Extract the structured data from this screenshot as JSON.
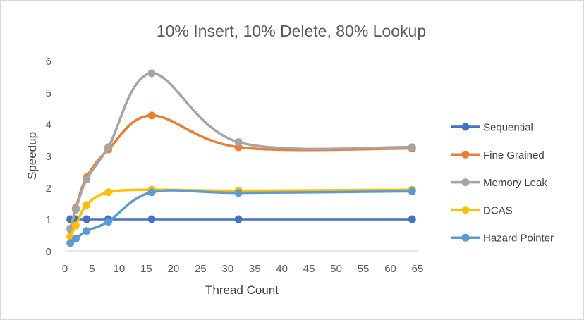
{
  "colors": {
    "axis": "#d9d9d9",
    "sequential": "#4472c4",
    "fine_grained": "#ed7d31",
    "memory_leak": "#a5a5a5",
    "dcas": "#ffc000",
    "hazard_pointer": "#5b9bd5"
  },
  "chart_data": {
    "type": "line",
    "title": "10% Insert, 10% Delete, 80% Lookup",
    "xlabel": "Thread Count",
    "ylabel": "Speedup",
    "xlim": [
      0,
      65
    ],
    "ylim": [
      0,
      6
    ],
    "xticks": [
      0,
      5,
      10,
      15,
      20,
      25,
      30,
      35,
      40,
      45,
      50,
      55,
      60,
      65
    ],
    "yticks": [
      0,
      1,
      2,
      3,
      4,
      5,
      6
    ],
    "grid": false,
    "legend_position": "right",
    "smoothed": true,
    "series": [
      {
        "name": "Sequential",
        "color_key": "sequential",
        "points": [
          [
            1,
            1.0
          ],
          [
            2,
            1.0
          ],
          [
            4,
            1.0
          ],
          [
            8,
            1.0
          ],
          [
            16,
            1.0
          ],
          [
            32,
            1.0
          ],
          [
            64,
            1.0
          ]
        ]
      },
      {
        "name": "Fine Grained",
        "color_key": "fine_grained",
        "points": [
          [
            1,
            0.7
          ],
          [
            2,
            1.35
          ],
          [
            4,
            2.32
          ],
          [
            8,
            3.2
          ],
          [
            16,
            4.27
          ],
          [
            32,
            3.27
          ],
          [
            64,
            3.23
          ]
        ]
      },
      {
        "name": "Memory Leak",
        "color_key": "memory_leak",
        "points": [
          [
            1,
            0.68
          ],
          [
            2,
            1.3
          ],
          [
            4,
            2.25
          ],
          [
            8,
            3.27
          ],
          [
            16,
            5.6
          ],
          [
            32,
            3.43
          ],
          [
            64,
            3.27
          ]
        ]
      },
      {
        "name": "DCAS",
        "color_key": "dcas",
        "points": [
          [
            1,
            0.45
          ],
          [
            2,
            0.8
          ],
          [
            4,
            1.45
          ],
          [
            8,
            1.85
          ],
          [
            16,
            1.93
          ],
          [
            32,
            1.9
          ],
          [
            64,
            1.93
          ]
        ]
      },
      {
        "name": "Hazard Pointer",
        "color_key": "hazard_pointer",
        "points": [
          [
            1,
            0.25
          ],
          [
            2,
            0.38
          ],
          [
            4,
            0.63
          ],
          [
            8,
            0.92
          ],
          [
            16,
            1.85
          ],
          [
            32,
            1.83
          ],
          [
            64,
            1.88
          ]
        ]
      }
    ]
  }
}
